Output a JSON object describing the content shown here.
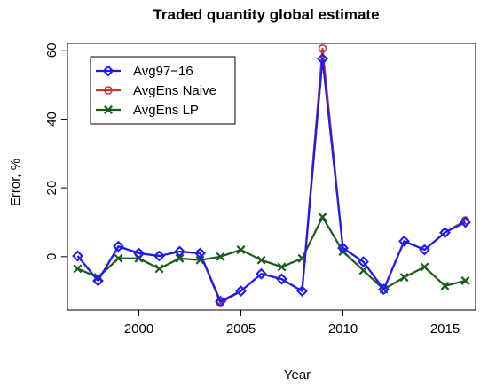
{
  "chart_data": {
    "type": "line",
    "title": "Traded quantity global estimate",
    "xlabel": "Year",
    "ylabel": "Error, %",
    "xlim": [
      1996.5,
      2016.5
    ],
    "ylim": [
      -15.5,
      62
    ],
    "xticks": [
      2000,
      2005,
      2010,
      2015
    ],
    "yticks": [
      0,
      20,
      40,
      60
    ],
    "grid": false,
    "legend_position": "top-left",
    "x": [
      1997,
      1998,
      1999,
      2000,
      2001,
      2002,
      2003,
      2004,
      2005,
      2006,
      2007,
      2008,
      2009,
      2010,
      2011,
      2012,
      2013,
      2014,
      2015,
      2016
    ],
    "series": [
      {
        "name": "Avg97−16",
        "color": "#1a1aff",
        "marker": "diamond",
        "values": [
          0.2,
          -7,
          3,
          1,
          0.2,
          1.5,
          1,
          -13,
          -10,
          -5,
          -6.5,
          -10,
          57.5,
          2.5,
          -1.5,
          -9.5,
          4.5,
          2,
          7,
          10
        ]
      },
      {
        "name": "AvgEns Naive",
        "color": "#c0392b",
        "marker": "circle",
        "values": [
          0.2,
          -7,
          3,
          1,
          0.2,
          1.5,
          1,
          -13.5,
          -10,
          -5,
          -6.5,
          -10,
          60.5,
          2.5,
          -1.5,
          -9.5,
          4.5,
          2,
          7,
          10.5
        ]
      },
      {
        "name": "AvgEns LP",
        "color": "#1a5c1a",
        "marker": "x",
        "values": [
          -3.5,
          -6,
          -0.5,
          -0.5,
          -3.5,
          -0.5,
          -1,
          0,
          2,
          -1,
          -3,
          -0.5,
          11.5,
          1.5,
          -4,
          -9.5,
          -6,
          -3,
          -8.5,
          -7
        ]
      }
    ]
  }
}
